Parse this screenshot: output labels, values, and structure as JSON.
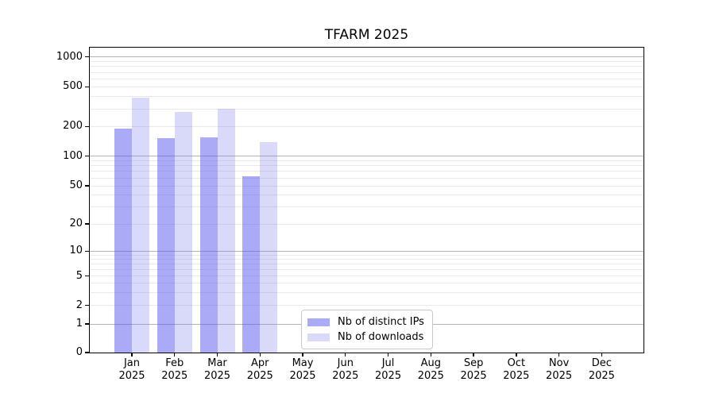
{
  "chart_data": {
    "type": "bar",
    "title": "TFARM 2025",
    "categories": [
      "Jan 2025",
      "Feb 2025",
      "Mar 2025",
      "Apr 2025",
      "May 2025",
      "Jun 2025",
      "Jul 2025",
      "Aug 2025",
      "Sep 2025",
      "Oct 2025",
      "Nov 2025",
      "Dec 2025"
    ],
    "x_tick_month": [
      "Jan",
      "Feb",
      "Mar",
      "Apr",
      "May",
      "Jun",
      "Jul",
      "Aug",
      "Sep",
      "Oct",
      "Nov",
      "Dec"
    ],
    "x_tick_year": "2025",
    "series": [
      {
        "name": "Nb of distinct IPs",
        "color": "#aaaaf7",
        "fill": "rgba(85,85,240,0.5)",
        "values": [
          190,
          152,
          155,
          63,
          0,
          0,
          0,
          0,
          0,
          0,
          0,
          0
        ]
      },
      {
        "name": "Nb of downloads",
        "color": "#d9d9f9",
        "fill": "rgba(120,120,235,0.28)",
        "values": [
          390,
          280,
          300,
          140,
          0,
          0,
          0,
          0,
          0,
          0,
          0,
          0
        ]
      }
    ],
    "xlabel": "",
    "ylabel": "",
    "yscale": "symlog",
    "y_ticks": [
      0,
      1,
      2,
      5,
      10,
      20,
      50,
      100,
      200,
      500,
      1000
    ],
    "ylim": [
      0,
      1280
    ],
    "grid": "horizontal: dark lines at powers of 10, light minor log lines",
    "legend_position": "lower center",
    "colors": {
      "major_grid": "#b4b4b4",
      "minor_grid": "#e9e9e9",
      "axis": "#000000",
      "text": "#000000",
      "background": "#ffffff"
    }
  }
}
